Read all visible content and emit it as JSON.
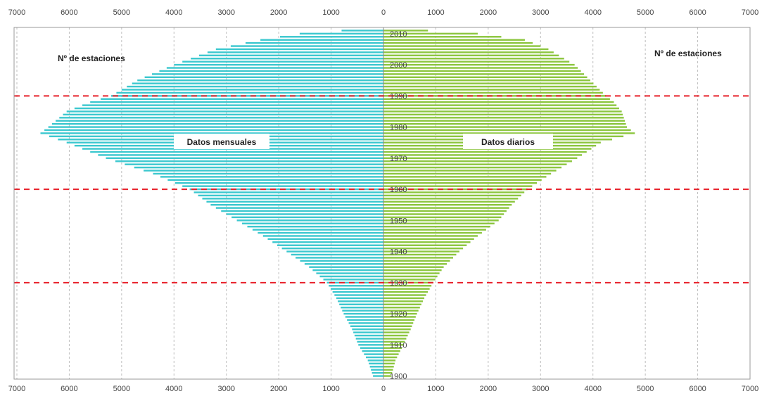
{
  "chart_data": {
    "type": "bar",
    "orientation": "horizontal-population-pyramid",
    "title": "",
    "left_label": "Nº de estaciones",
    "right_label": "Nº de estaciones",
    "x_ticks": [
      7000,
      6000,
      5000,
      4000,
      3000,
      2000,
      1000,
      0,
      1000,
      2000,
      3000,
      4000,
      5000,
      6000,
      7000
    ],
    "xlim": [
      -7000,
      7000
    ],
    "year_ticks": [
      1900,
      1910,
      1920,
      1930,
      1940,
      1950,
      1960,
      1970,
      1980,
      1990,
      2000,
      2010
    ],
    "ylim": [
      1899,
      2012
    ],
    "reference_lines": [
      1930,
      1960,
      1990
    ],
    "grid": "vertical dashed at 1000 intervals",
    "series": [
      {
        "name": "Datos mensuales",
        "side": "left",
        "color": "#3cc8cf",
        "anchors": [
          [
            1900,
            200
          ],
          [
            1905,
            300
          ],
          [
            1910,
            480
          ],
          [
            1915,
            600
          ],
          [
            1920,
            760
          ],
          [
            1925,
            900
          ],
          [
            1930,
            1080
          ],
          [
            1935,
            1420
          ],
          [
            1940,
            1850
          ],
          [
            1945,
            2300
          ],
          [
            1950,
            2800
          ],
          [
            1955,
            3300
          ],
          [
            1960,
            3700
          ],
          [
            1965,
            4400
          ],
          [
            1970,
            5300
          ],
          [
            1975,
            6050
          ],
          [
            1978,
            6550
          ],
          [
            1980,
            6400
          ],
          [
            1985,
            6050
          ],
          [
            1988,
            5600
          ],
          [
            1990,
            5200
          ],
          [
            1995,
            4700
          ],
          [
            2000,
            4000
          ],
          [
            2005,
            3200
          ],
          [
            2008,
            2350
          ],
          [
            2010,
            1600
          ],
          [
            2011,
            800
          ]
        ]
      },
      {
        "name": "Datos diarios",
        "side": "right",
        "color": "#8cc63f",
        "anchors": [
          [
            1900,
            150
          ],
          [
            1905,
            230
          ],
          [
            1910,
            380
          ],
          [
            1915,
            520
          ],
          [
            1920,
            640
          ],
          [
            1925,
            780
          ],
          [
            1930,
            950
          ],
          [
            1935,
            1150
          ],
          [
            1940,
            1450
          ],
          [
            1945,
            1800
          ],
          [
            1950,
            2200
          ],
          [
            1955,
            2450
          ],
          [
            1960,
            2750
          ],
          [
            1965,
            3200
          ],
          [
            1970,
            3700
          ],
          [
            1975,
            4150
          ],
          [
            1978,
            4800
          ],
          [
            1980,
            4650
          ],
          [
            1985,
            4550
          ],
          [
            1988,
            4400
          ],
          [
            1990,
            4250
          ],
          [
            1995,
            3950
          ],
          [
            2000,
            3650
          ],
          [
            2005,
            3150
          ],
          [
            2008,
            2700
          ],
          [
            2010,
            1800
          ],
          [
            2011,
            850
          ]
        ]
      }
    ]
  }
}
